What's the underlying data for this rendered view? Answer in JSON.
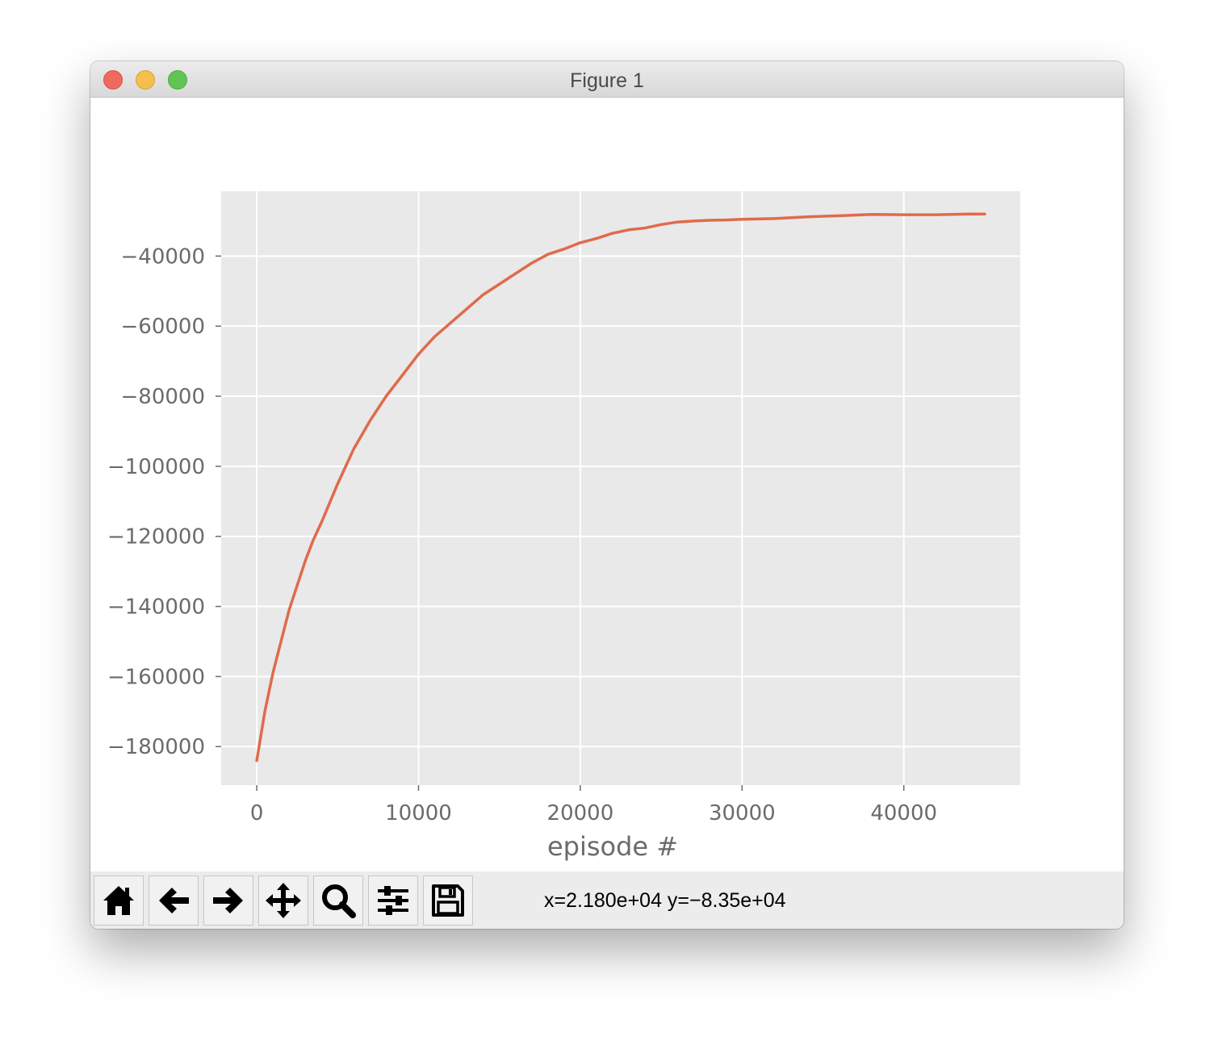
{
  "window": {
    "title": "Figure 1"
  },
  "toolbar": {
    "buttons": [
      "home-icon",
      "back-arrow-icon",
      "forward-arrow-icon",
      "pan-icon",
      "zoom-icon",
      "configure-subplots-icon",
      "save-icon"
    ],
    "status": "x=2.180e+04 y=−8.35e+04"
  },
  "chart_data": {
    "type": "line",
    "title": "",
    "xlabel": "episode #",
    "ylabel": "",
    "xlim": [
      -2200,
      47200
    ],
    "ylim": [
      -191000,
      -21500
    ],
    "xticks": [
      0,
      10000,
      20000,
      30000,
      40000
    ],
    "xtick_labels": [
      "0",
      "10000",
      "20000",
      "30000",
      "40000"
    ],
    "yticks": [
      -40000,
      -60000,
      -80000,
      -100000,
      -120000,
      -140000,
      -160000,
      -180000
    ],
    "ytick_labels": [
      "−40000",
      "−60000",
      "−80000",
      "−100000",
      "−120000",
      "−140000",
      "−160000",
      "−180000"
    ],
    "grid": true,
    "background": "#e9e9e9",
    "series": [
      {
        "color": "#e06a4c",
        "x": [
          0,
          250,
          500,
          1000,
          1500,
          2000,
          2500,
          3000,
          3500,
          4000,
          5000,
          6000,
          7000,
          8000,
          9000,
          10000,
          11000,
          12000,
          13000,
          14000,
          15000,
          16000,
          17000,
          18000,
          19000,
          20000,
          21000,
          22000,
          23000,
          24000,
          25000,
          26000,
          27000,
          28000,
          29000,
          30000,
          32000,
          34000,
          36000,
          38000,
          40000,
          42000,
          44000,
          45000
        ],
        "y": [
          -184000,
          -177000,
          -170000,
          -159000,
          -150000,
          -141000,
          -134000,
          -127000,
          -121000,
          -116000,
          -105000,
          -95000,
          -87000,
          -80000,
          -74000,
          -68000,
          -63000,
          -59000,
          -55000,
          -51000,
          -48000,
          -45000,
          -42000,
          -39500,
          -38000,
          -36200,
          -35000,
          -33500,
          -32500,
          -32000,
          -31000,
          -30300,
          -30000,
          -29800,
          -29700,
          -29500,
          -29300,
          -28800,
          -28500,
          -28100,
          -28200,
          -28200,
          -28000,
          -28000
        ]
      }
    ]
  }
}
